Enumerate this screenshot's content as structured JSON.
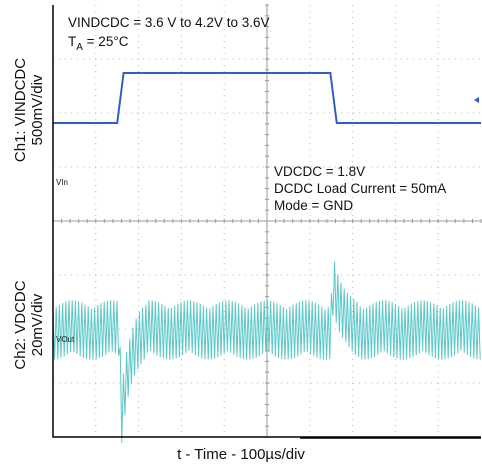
{
  "chart_data": {
    "type": "line",
    "title": "",
    "xlabel": "t - Time - 100µs/div",
    "time_per_div_us": 100,
    "annotations": {
      "top_line1": "VINDCDC = 3.6 V to 4.2V to 3.6V",
      "ta_main": "T",
      "ta_sub": "A",
      "ta_rest": " = 25°C",
      "cond1": "VDCDC = 1.8V",
      "cond2": "DCDC Load Current = 50mA",
      "cond3": "Mode = GND"
    },
    "channels": [
      {
        "name": "Ch1: VINDCDC",
        "scale": "500mV/div",
        "trace_label": "VIn",
        "color": "#2f5fc4",
        "type": "step",
        "low_V": 3.6,
        "high_V": 4.2,
        "rise_start_us": 150,
        "rise_end_us": 165,
        "fall_start_us": 648,
        "fall_end_us": 663
      },
      {
        "name": "Ch2: VDCDC",
        "scale": "20mV/div",
        "trace_label": "VOut",
        "color": "#5cc8c8",
        "type": "ripple",
        "nominal_V": 1.8,
        "ripple_pp_mV": 22,
        "events": [
          {
            "t_us": 160,
            "peak_mV": -33
          },
          {
            "t_us": 655,
            "peak_mV": 18
          }
        ]
      }
    ]
  }
}
